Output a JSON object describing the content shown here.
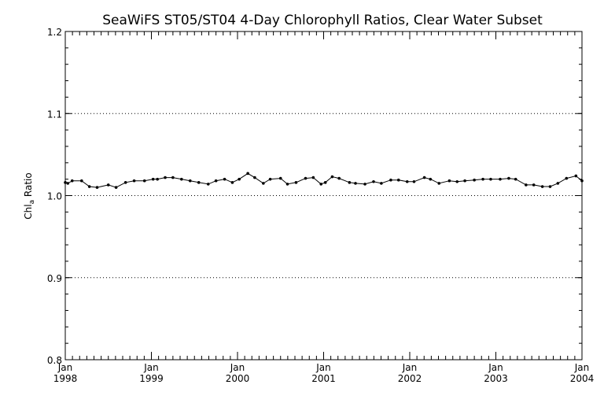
{
  "chart_data": {
    "type": "line",
    "title": "SeaWiFS ST05/ST04 4-Day Chlorophyll Ratios, Clear Water Subset",
    "ylabel_main": "Chl",
    "ylabel_sub": "a",
    "ylabel_rest": " Ratio",
    "ylim": [
      0.8,
      1.2
    ],
    "yticks": [
      {
        "value": 0.8,
        "label": "0.8"
      },
      {
        "value": 0.9,
        "label": "0.9"
      },
      {
        "value": 1.0,
        "label": "1.0"
      },
      {
        "value": 1.1,
        "label": "1.1"
      },
      {
        "value": 1.2,
        "label": "1.2"
      }
    ],
    "ygrid": [
      0.9,
      1.0,
      1.1
    ],
    "xlim": [
      1998.0,
      2004.0
    ],
    "xticks": [
      {
        "value": 1998,
        "month": "Jan",
        "year": "1998"
      },
      {
        "value": 1999,
        "month": "Jan",
        "year": "1999"
      },
      {
        "value": 2000,
        "month": "Jan",
        "year": "2000"
      },
      {
        "value": 2001,
        "month": "Jan",
        "year": "2001"
      },
      {
        "value": 2002,
        "month": "Jan",
        "year": "2002"
      },
      {
        "value": 2003,
        "month": "Jan",
        "year": "2003"
      },
      {
        "value": 2004,
        "month": "Jan",
        "year": "2004"
      }
    ],
    "series": [
      {
        "x": [
          1998.0,
          1998.03,
          1998.08,
          1998.19,
          1998.28,
          1998.37,
          1998.5,
          1998.59,
          1998.7,
          1998.8,
          1998.92,
          1999.02,
          1999.07,
          1999.16,
          1999.25,
          1999.35,
          1999.45,
          1999.55,
          1999.66,
          1999.75,
          1999.85,
          1999.94,
          2000.02,
          2000.12,
          2000.2,
          2000.3,
          2000.38,
          2000.5,
          2000.58,
          2000.68,
          2000.79,
          2000.88,
          2000.97,
          2001.02,
          2001.1,
          2001.18,
          2001.3,
          2001.37,
          2001.48,
          2001.58,
          2001.67,
          2001.78,
          2001.87,
          2001.97,
          2002.05,
          2002.17,
          2002.24,
          2002.34,
          2002.46,
          2002.55,
          2002.64,
          2002.75,
          2002.85,
          2002.94,
          2003.05,
          2003.15,
          2003.23,
          2003.35,
          2003.44,
          2003.54,
          2003.63,
          2003.72,
          2003.82,
          2003.93,
          2004.0
        ],
        "y": [
          1.016,
          1.015,
          1.018,
          1.018,
          1.011,
          1.01,
          1.013,
          1.01,
          1.016,
          1.018,
          1.018,
          1.02,
          1.02,
          1.022,
          1.022,
          1.02,
          1.018,
          1.016,
          1.014,
          1.018,
          1.02,
          1.016,
          1.02,
          1.027,
          1.022,
          1.015,
          1.02,
          1.021,
          1.014,
          1.016,
          1.021,
          1.022,
          1.014,
          1.016,
          1.023,
          1.021,
          1.016,
          1.015,
          1.014,
          1.017,
          1.015,
          1.019,
          1.019,
          1.017,
          1.017,
          1.022,
          1.02,
          1.015,
          1.018,
          1.017,
          1.018,
          1.019,
          1.02,
          1.02,
          1.02,
          1.021,
          1.02,
          1.013,
          1.013,
          1.011,
          1.011,
          1.015,
          1.021,
          1.024,
          1.018
        ]
      }
    ]
  }
}
